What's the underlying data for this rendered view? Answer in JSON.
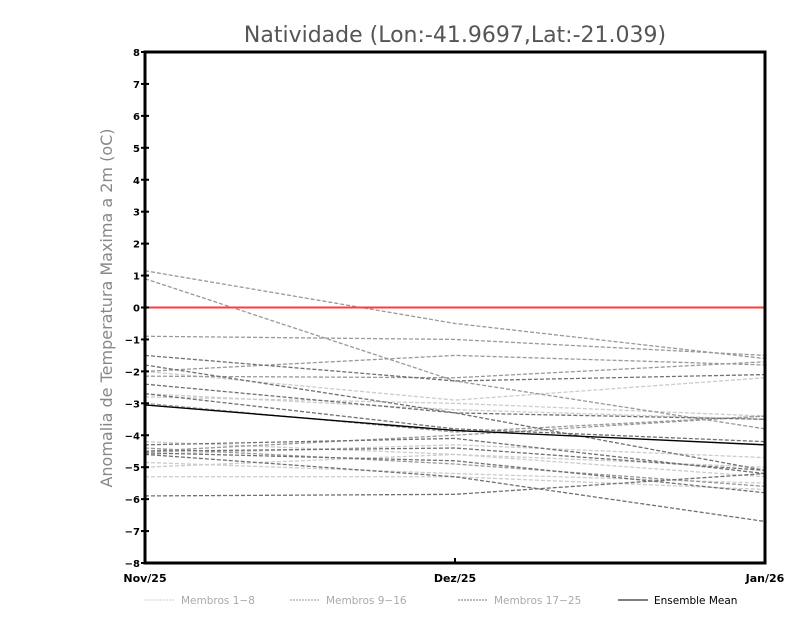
{
  "chart_data": {
    "type": "line",
    "title": "Natividade (Lon:-41.9697,Lat:-21.039)",
    "xlabel": "",
    "ylabel": "Anomalia de Temperatura Maxima a 2m (oC)",
    "categories": [
      "Nov/25",
      "Dez/25",
      "Jan/26"
    ],
    "ylim": [
      -8,
      8
    ],
    "yticks": [
      -8,
      -7,
      -6,
      -5,
      -4,
      -3,
      -2,
      -1,
      0,
      1,
      2,
      3,
      4,
      5,
      6,
      7,
      8
    ],
    "reference_line": {
      "value": 0,
      "color": "#ff3b3b"
    },
    "groups": [
      {
        "name": "Membros 1-8",
        "color": "#cccccc",
        "series": [
          [
            -2.0,
            -2.9,
            -2.2
          ],
          [
            -2.8,
            -3.0,
            -3.4
          ],
          [
            -4.85,
            -5.2,
            -5.5
          ],
          [
            -5.3,
            -5.3,
            -5.7
          ],
          [
            -4.6,
            -4.3,
            -4.7
          ],
          [
            -2.7,
            -3.2,
            -3.5
          ],
          [
            -5.0,
            -4.6,
            -5.3
          ],
          [
            -4.2,
            -4.6,
            -5.0
          ]
        ]
      },
      {
        "name": "Membros 9-16",
        "color": "#999999",
        "series": [
          [
            1.15,
            -0.5,
            -1.6
          ],
          [
            0.9,
            -2.3,
            -3.8
          ],
          [
            -0.9,
            -1.0,
            -1.5
          ],
          [
            -2.0,
            -1.5,
            -1.8
          ],
          [
            -3.0,
            -3.9,
            -3.4
          ],
          [
            -4.5,
            -4.0,
            -3.4
          ],
          [
            -4.4,
            -4.9,
            -5.6
          ],
          [
            -2.15,
            -2.2,
            -1.7
          ]
        ]
      },
      {
        "name": "Membros 17-25",
        "color": "#707070",
        "series": [
          [
            -1.5,
            -2.3,
            -2.1
          ],
          [
            -1.8,
            -3.3,
            -3.5
          ],
          [
            -2.4,
            -3.3,
            -5.1
          ],
          [
            -2.7,
            -3.8,
            -4.2
          ],
          [
            -4.3,
            -4.1,
            -5.2
          ],
          [
            -4.55,
            -4.8,
            -5.8
          ],
          [
            -4.6,
            -5.3,
            -6.7
          ],
          [
            -5.9,
            -5.85,
            -5.2
          ],
          [
            -4.5,
            -4.4,
            -5.1
          ]
        ]
      }
    ],
    "ensemble_mean": {
      "name": "Ensemble Mean",
      "color": "#000000",
      "values": [
        -3.05,
        -3.85,
        -4.3
      ]
    },
    "legend_position": "bottom"
  }
}
